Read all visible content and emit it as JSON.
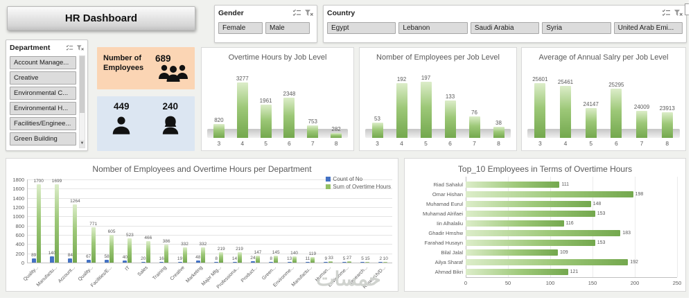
{
  "app": {
    "title": "HR Dashboard",
    "watermark": "خمسات"
  },
  "colors": {
    "bar_green_light": "#dcedc9",
    "bar_green_mid": "#9dc878",
    "bar_green_dark": "#74a84e",
    "series_blue": "#4472c4",
    "card_orange_bg": "#fbd5b4",
    "card_blue_bg": "#dce6f2",
    "slicer_button_bg": "#dcdcdc",
    "chart_text": "#595959"
  },
  "slicers": {
    "gender": {
      "label": "Gender",
      "items": [
        "Female",
        "Male"
      ]
    },
    "country": {
      "label": "Country",
      "items": [
        "Egypt",
        "Lebanon",
        "Saudi Arabia",
        "Syria",
        "United Arab Emi..."
      ]
    },
    "department": {
      "label": "Department",
      "items": [
        "Account Manage...",
        "Creative",
        "Environmental C...",
        "Environmental H...",
        "Facilities/Enginee...",
        "Green Building"
      ],
      "scroll_down_glyph": "▼"
    }
  },
  "cards": {
    "employees": {
      "label": "Number of Employees",
      "value": "689"
    },
    "males": {
      "value": "449"
    },
    "females": {
      "value": "240"
    }
  },
  "chart_data": [
    {
      "type": "bar",
      "title": "Overtime Hours by Job Level",
      "categories": [
        "3",
        "4",
        "5",
        "6",
        "7",
        "8"
      ],
      "values": [
        820,
        3277,
        1961,
        2348,
        753,
        282
      ],
      "ylim": [
        0,
        3500
      ],
      "data_labels": true,
      "grid": false
    },
    {
      "type": "bar",
      "title": "Nomber of Employees per Job Level",
      "categories": [
        "3",
        "4",
        "5",
        "6",
        "7",
        "8"
      ],
      "values": [
        53,
        192,
        197,
        133,
        76,
        38
      ],
      "ylim": [
        0,
        210
      ],
      "data_labels": true,
      "grid": false
    },
    {
      "type": "bar",
      "title": "Average of Annual Salry per Job Level",
      "categories": [
        "3",
        "4",
        "5",
        "6",
        "7",
        "8"
      ],
      "values": [
        25601,
        25461,
        24147,
        25295,
        24009,
        23913
      ],
      "ylim": [
        22400,
        25900
      ],
      "data_labels": true,
      "grid": false
    },
    {
      "type": "bar",
      "title": "Nomber of Employees and Overtime Hours per Department",
      "categories": [
        "Quality...",
        "Manufactu...",
        "Account...",
        "Quality...",
        "Facilities/E...",
        "IT",
        "Sales",
        "Training",
        "Creative",
        "Marketing",
        "Major Mfg...",
        "Professiona...",
        "Product...",
        "Green...",
        "Environme...",
        "Manufactu...",
        "Human...",
        "Environme...",
        "Research...",
        "Research/D..."
      ],
      "series": [
        {
          "name": "Count of No",
          "color": "#4472c4",
          "values": [
            89,
            140,
            84,
            67,
            58,
            40,
            20,
            16,
            19,
            48,
            8,
            14,
            24,
            8,
            13,
            11,
            9,
            5,
            5,
            2
          ]
        },
        {
          "name": "Sum of Overtime Hours",
          "color": "#94c065",
          "values": [
            1700,
            1699,
            1264,
            771,
            605,
            523,
            466,
            386,
            332,
            332,
            219,
            219,
            147,
            145,
            140,
            119,
            33,
            27,
            15,
            10
          ]
        }
      ],
      "ylim": [
        0,
        1800
      ],
      "yticks": [
        0,
        200,
        400,
        600,
        800,
        1000,
        1200,
        1400,
        1600,
        1800
      ],
      "legend_position": "top-right",
      "grid": true,
      "data_labels": true
    },
    {
      "type": "bar",
      "orientation": "horizontal",
      "title": "Top_10 Employees in Terms of Overtime Hours",
      "categories": [
        "Riad Sahalul",
        "Omar Hishan",
        "Muhamad Eurul",
        "Muhamad Alrifaei",
        "Iin Alhalaliu",
        "Ghadir Hmshw",
        "Farahad Husayn",
        "Bilal Jalal",
        "Ailya Sharaf",
        "Ahmad Bikri"
      ],
      "values": [
        111,
        198,
        148,
        153,
        116,
        183,
        153,
        109,
        192,
        121
      ],
      "xlim": [
        0,
        250
      ],
      "xticks": [
        0,
        50,
        100,
        150,
        200,
        250
      ],
      "data_labels": true,
      "grid": true
    }
  ]
}
